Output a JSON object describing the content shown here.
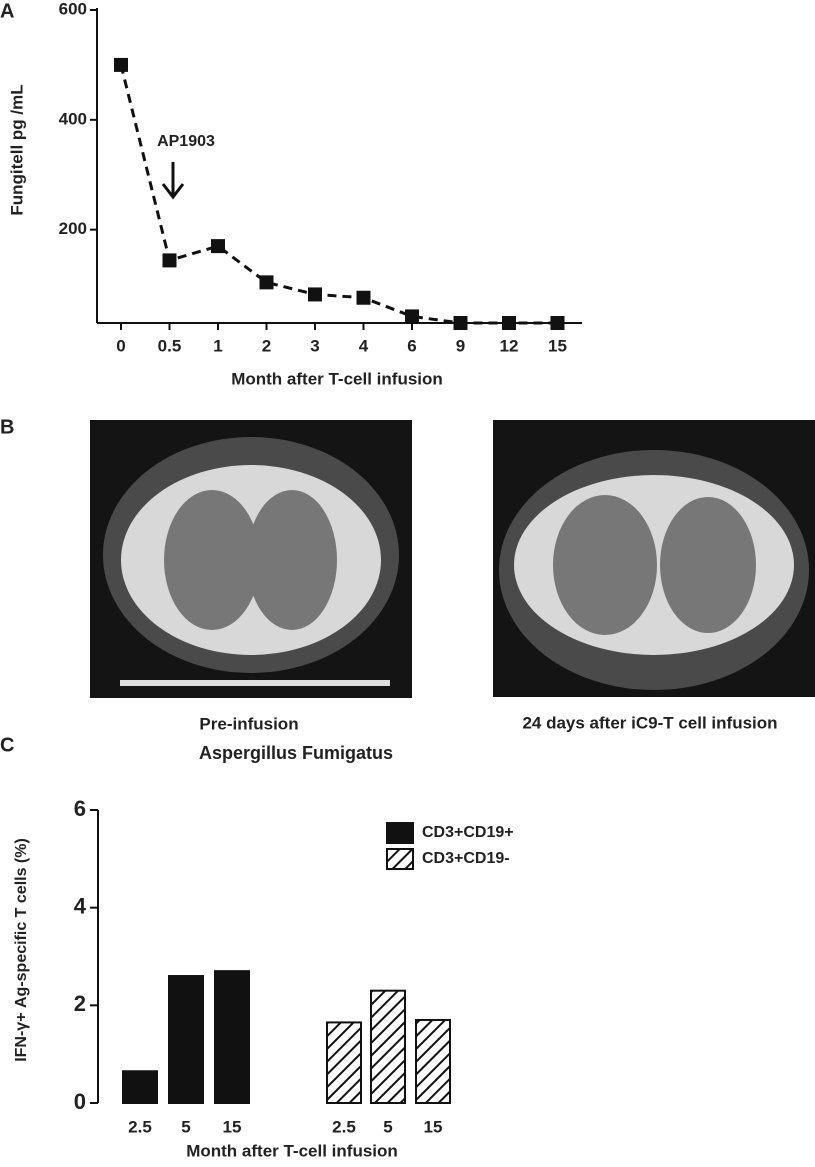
{
  "panel_labels": [
    "A",
    "B",
    "C"
  ],
  "images": {
    "captions": [
      "Pre-infusion",
      "24 days after iC9-T cell infusion"
    ]
  },
  "chart_data": [
    {
      "type": "line",
      "x_label": "Month after T-cell infusion",
      "y_label": "Fungitell pg /mL",
      "annotation": "AP1903",
      "categories": [
        "0",
        "0.5",
        "1",
        "2",
        "3",
        "4",
        "6",
        "9",
        "12",
        "15"
      ],
      "values": [
        500,
        144,
        170,
        104,
        82,
        76,
        42,
        30,
        30,
        30
      ],
      "color": "#111111",
      "ylim": [
        30,
        600
      ],
      "yticks": [
        200,
        400,
        600
      ]
    },
    {
      "type": "bar",
      "title": "Aspergillus Fumigatus",
      "x_label": "Month after T-cell infusion",
      "y_label": "IFN-γ+ Ag-specific T cells  (%)",
      "categories": [
        "2.5",
        "5",
        "15"
      ],
      "series": [
        {
          "name": "CD3+CD19+",
          "color": "#111111",
          "pattern": "solid",
          "values": [
            0.65,
            2.6,
            2.7
          ]
        },
        {
          "name": "CD3+CD19-",
          "color": "#111111",
          "pattern": "hatch",
          "values": [
            1.65,
            2.3,
            1.7
          ]
        }
      ],
      "ylim": [
        0,
        6
      ],
      "yticks": [
        0,
        2,
        4,
        6
      ]
    }
  ]
}
